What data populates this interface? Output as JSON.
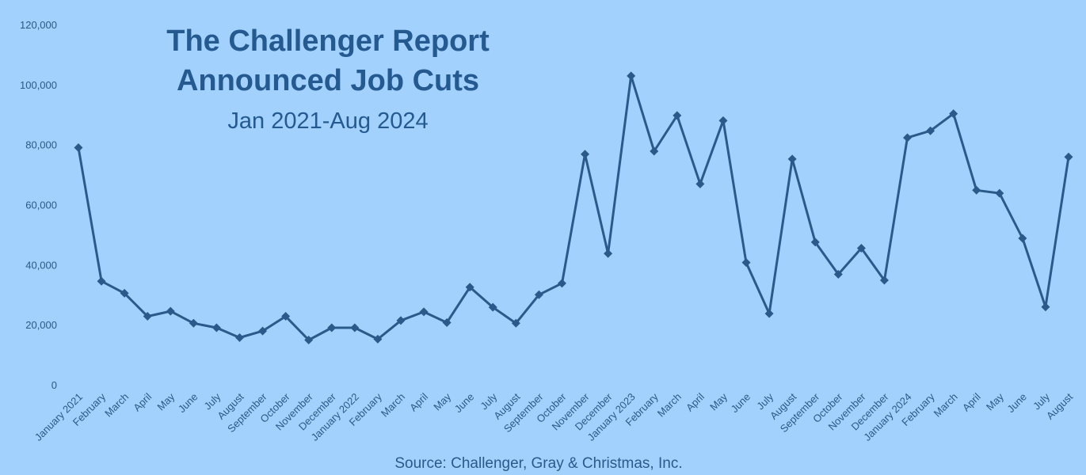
{
  "chart_data": {
    "type": "line",
    "title_line1": "The Challenger Report",
    "title_line2": "Announced Job Cuts",
    "subtitle": "Jan 2021-Aug 2024",
    "source": "Source: Challenger, Gray & Christmas, Inc.",
    "ylim": [
      0,
      120000
    ],
    "yticks": [
      "0",
      "20,000",
      "40,000",
      "60,000",
      "80,000",
      "100,000",
      "120,000"
    ],
    "grid": false,
    "line_color": "#2a5a8a",
    "categories": [
      "January 2021",
      "February",
      "March",
      "April",
      "May",
      "June",
      "July",
      "August",
      "September",
      "October",
      "November",
      "December",
      "January 2022",
      "February",
      "March",
      "April",
      "May",
      "June",
      "July",
      "August",
      "September",
      "October",
      "November",
      "December",
      "January 2023",
      "February",
      "March",
      "April",
      "May",
      "June",
      "July",
      "August",
      "September",
      "October",
      "November",
      "December",
      "January 2024",
      "February",
      "March",
      "April",
      "May",
      "June",
      "July",
      "August"
    ],
    "series": [
      {
        "values": [
          79000,
          34500,
          30500,
          22800,
          24500,
          20500,
          19000,
          15700,
          17900,
          22800,
          14900,
          19000,
          19000,
          15200,
          21400,
          24300,
          20700,
          32500,
          25800,
          20500,
          30000,
          33800,
          76800,
          43700,
          102900,
          77800,
          89700,
          66900,
          88000,
          40700,
          23700,
          75200,
          47500,
          36800,
          45500,
          34800,
          82300,
          84600,
          90300,
          64800,
          63800,
          48800,
          25900,
          75900
        ]
      }
    ]
  }
}
